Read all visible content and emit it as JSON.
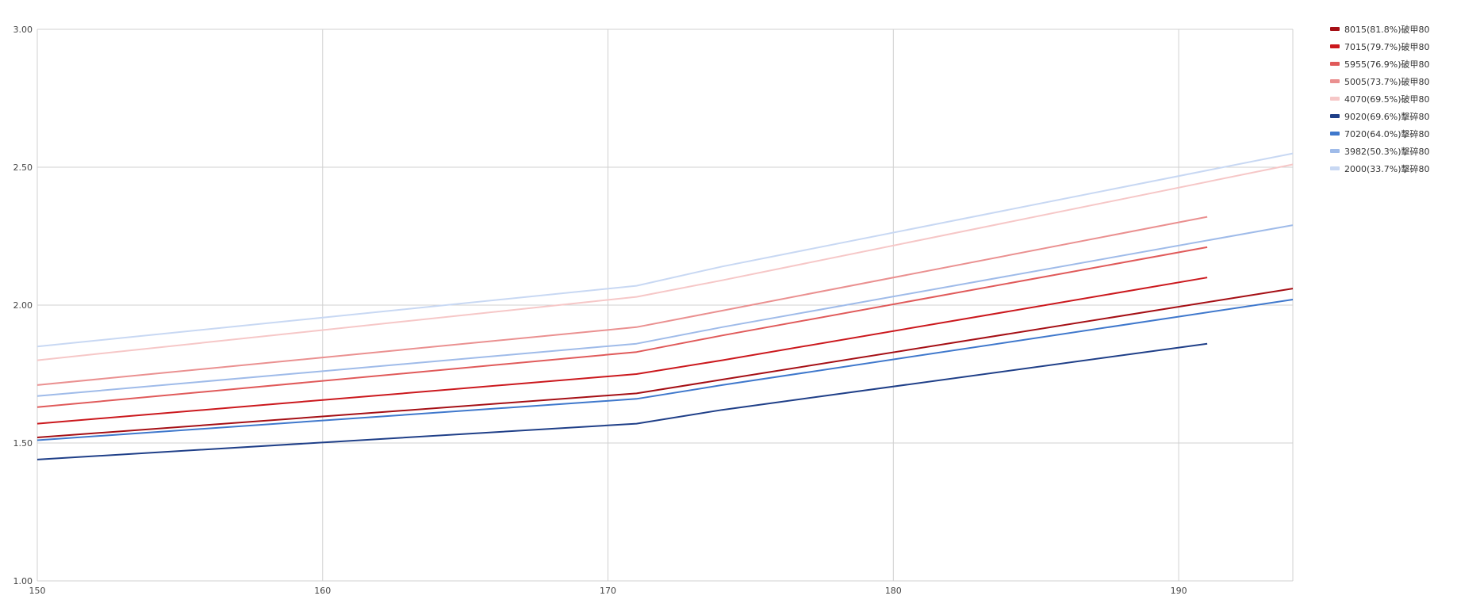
{
  "chart_data": {
    "type": "line",
    "title": "",
    "xlabel": "",
    "ylabel": "",
    "xlim": [
      150,
      194
    ],
    "ylim": [
      1.0,
      3.0
    ],
    "x_ticks": [
      "150",
      "160",
      "170",
      "180",
      "190"
    ],
    "y_ticks": [
      "1.00",
      "1.50",
      "2.00",
      "2.50",
      "3.00"
    ],
    "grid": true,
    "legend_position": "right",
    "series": [
      {
        "name": "8015(81.8%)破甲80",
        "color": "#a50f15",
        "x": [
          150,
          171,
          174,
          194
        ],
        "y": [
          1.52,
          1.68,
          1.73,
          2.06
        ]
      },
      {
        "name": "7015(79.7%)破甲80",
        "color": "#cb181d",
        "x": [
          150,
          171,
          174,
          191
        ],
        "y": [
          1.57,
          1.75,
          1.8,
          2.1
        ]
      },
      {
        "name": "5955(76.9%)破甲80",
        "color": "#e05a5a",
        "x": [
          150,
          171,
          174,
          191
        ],
        "y": [
          1.63,
          1.83,
          1.89,
          2.21
        ]
      },
      {
        "name": "5005(73.7%)破甲80",
        "color": "#ea9090",
        "x": [
          150,
          171,
          174,
          191
        ],
        "y": [
          1.71,
          1.92,
          1.98,
          2.32
        ]
      },
      {
        "name": "4070(69.5%)破甲80",
        "color": "#f6c7c7",
        "x": [
          150,
          171,
          174,
          194
        ],
        "y": [
          1.8,
          2.03,
          2.09,
          2.51
        ]
      },
      {
        "name": "9020(69.6%)擊碎80",
        "color": "#1f3f88",
        "x": [
          150,
          171,
          174,
          191
        ],
        "y": [
          1.44,
          1.57,
          1.62,
          1.86
        ]
      },
      {
        "name": "7020(64.0%)擊碎80",
        "color": "#3f78cc",
        "x": [
          150,
          171,
          174,
          194
        ],
        "y": [
          1.51,
          1.66,
          1.71,
          2.02
        ]
      },
      {
        "name": "3982(50.3%)擊碎80",
        "color": "#9fbbe9",
        "x": [
          150,
          171,
          174,
          194
        ],
        "y": [
          1.67,
          1.86,
          1.92,
          2.29
        ]
      },
      {
        "name": "2000(33.7%)擊碎80",
        "color": "#c8d8f3",
        "x": [
          150,
          171,
          174,
          194
        ],
        "y": [
          1.85,
          2.07,
          2.14,
          2.55
        ]
      }
    ]
  }
}
